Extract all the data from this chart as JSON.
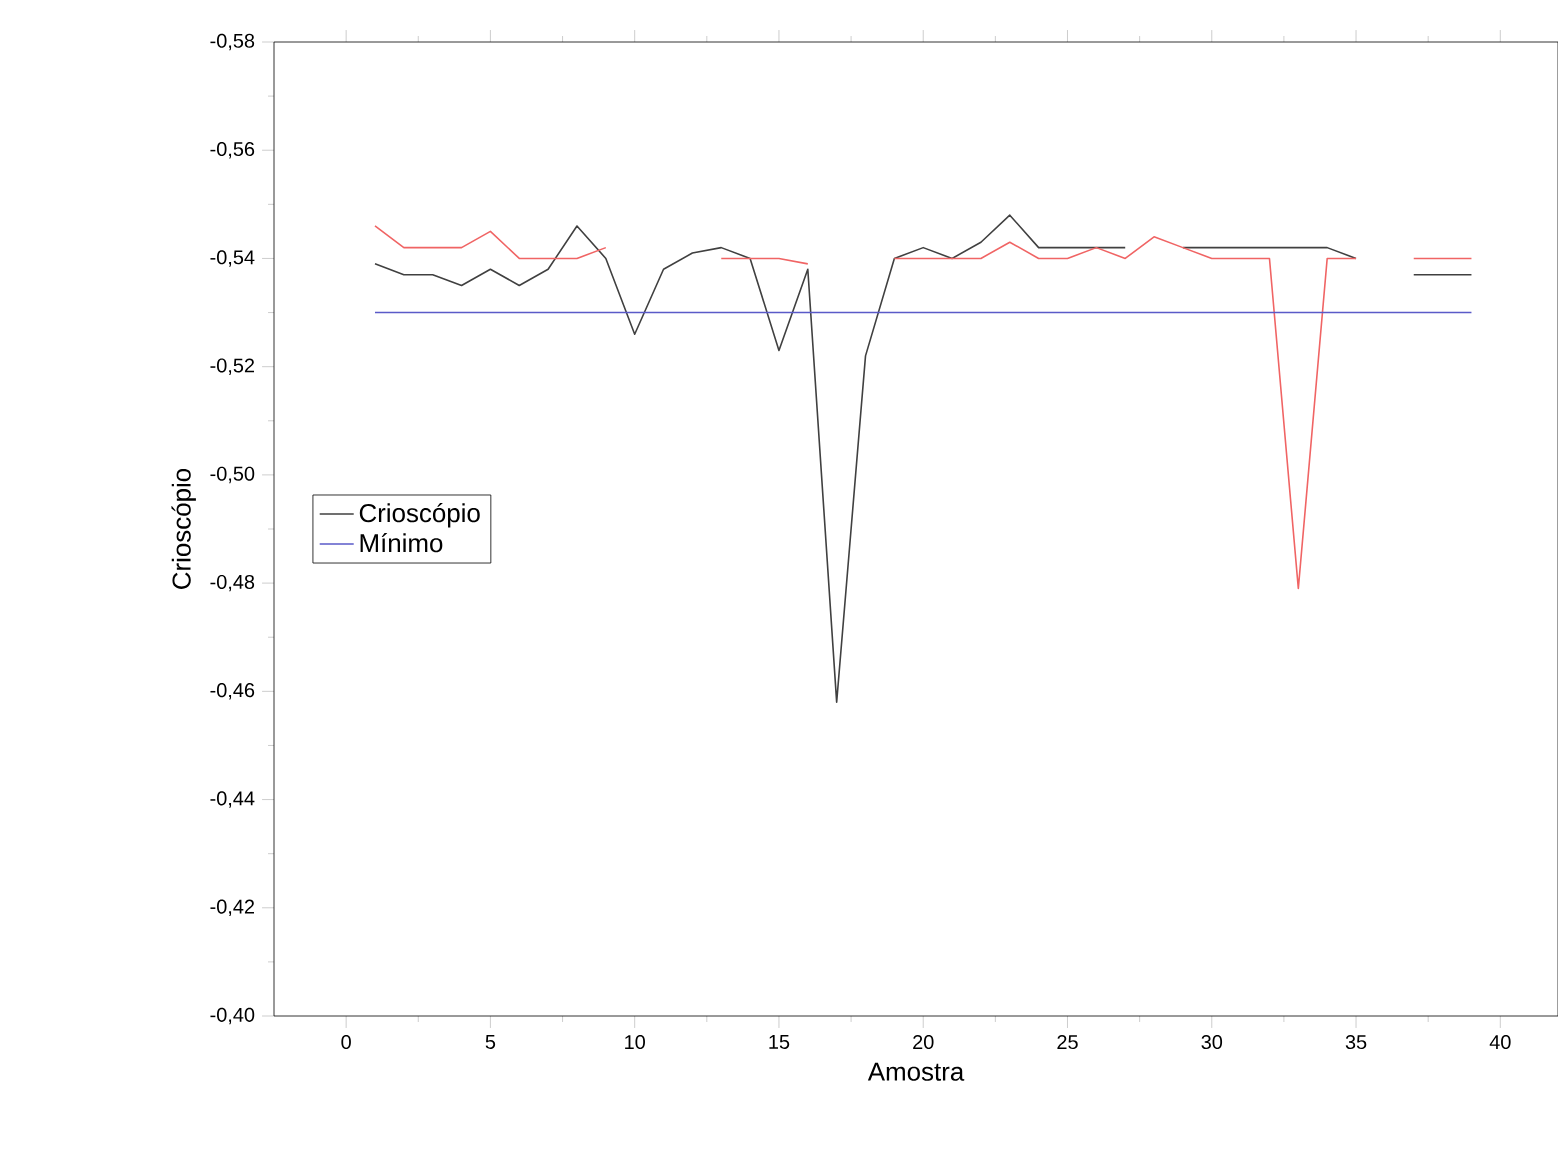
{
  "chart_data": {
    "type": "line",
    "xlabel": "Amostra",
    "ylabel": "Crioscópio",
    "x": [
      1,
      2,
      3,
      4,
      5,
      6,
      7,
      8,
      9,
      10,
      11,
      12,
      13,
      14,
      15,
      16,
      17,
      18,
      19,
      20,
      21,
      22,
      23,
      24,
      25,
      26,
      27,
      28,
      29,
      30,
      31,
      32,
      33,
      34,
      35,
      36,
      37,
      38,
      39
    ],
    "series": [
      {
        "name": "Crioscópio",
        "color": "#404040",
        "values": [
          -0.539,
          -0.537,
          -0.537,
          -0.535,
          -0.538,
          -0.535,
          -0.538,
          -0.546,
          -0.54,
          -0.526,
          -0.538,
          -0.541,
          -0.542,
          -0.54,
          -0.523,
          -0.538,
          -0.458,
          -0.522,
          -0.54,
          -0.542,
          -0.54,
          -0.543,
          -0.548,
          -0.542,
          -0.542,
          -0.542,
          -0.542,
          null,
          -0.542,
          -0.542,
          -0.542,
          -0.542,
          -0.542,
          -0.542,
          -0.54,
          null,
          -0.537,
          -0.537,
          -0.537
        ]
      },
      {
        "color": "#f06464",
        "values": [
          -0.546,
          -0.542,
          -0.542,
          -0.542,
          -0.545,
          -0.54,
          -0.54,
          -0.54,
          -0.542,
          null,
          null,
          null,
          -0.54,
          -0.54,
          -0.54,
          -0.539,
          null,
          null,
          -0.54,
          -0.54,
          -0.54,
          -0.54,
          -0.543,
          -0.54,
          -0.54,
          -0.542,
          -0.54,
          -0.544,
          -0.542,
          -0.54,
          -0.54,
          -0.54,
          -0.479,
          -0.54,
          -0.54,
          null,
          -0.54,
          -0.54,
          -0.54
        ]
      },
      {
        "name": "Mínimo",
        "color": "#5a5ac8",
        "values": [
          -0.53,
          -0.53,
          -0.53,
          -0.53,
          -0.53,
          -0.53,
          -0.53,
          -0.53,
          -0.53,
          -0.53,
          -0.53,
          -0.53,
          -0.53,
          -0.53,
          -0.53,
          -0.53,
          -0.53,
          -0.53,
          -0.53,
          -0.53,
          -0.53,
          -0.53,
          -0.53,
          -0.53,
          -0.53,
          -0.53,
          -0.53,
          -0.53,
          -0.53,
          -0.53,
          -0.53,
          -0.53,
          -0.53,
          -0.53,
          -0.53,
          -0.53,
          -0.53,
          -0.53,
          -0.53
        ]
      }
    ],
    "xlim": [
      -2.5,
      42
    ],
    "xticks": [
      0,
      5,
      10,
      15,
      20,
      25,
      30,
      35,
      40
    ],
    "ylim": [
      -0.4,
      -0.58
    ],
    "yticks": [
      {
        "value": -0.58,
        "label": "-0,58"
      },
      {
        "value": -0.56,
        "label": "-0,56"
      },
      {
        "value": -0.54,
        "label": "-0,54"
      },
      {
        "value": -0.52,
        "label": "-0,52"
      },
      {
        "value": -0.5,
        "label": "-0,50"
      },
      {
        "value": -0.48,
        "label": "-0,48"
      },
      {
        "value": -0.46,
        "label": "-0,46"
      },
      {
        "value": -0.44,
        "label": "-0,44"
      },
      {
        "value": -0.42,
        "label": "-0,42"
      },
      {
        "value": -0.4,
        "label": "-0,40"
      }
    ],
    "legend": "left"
  }
}
